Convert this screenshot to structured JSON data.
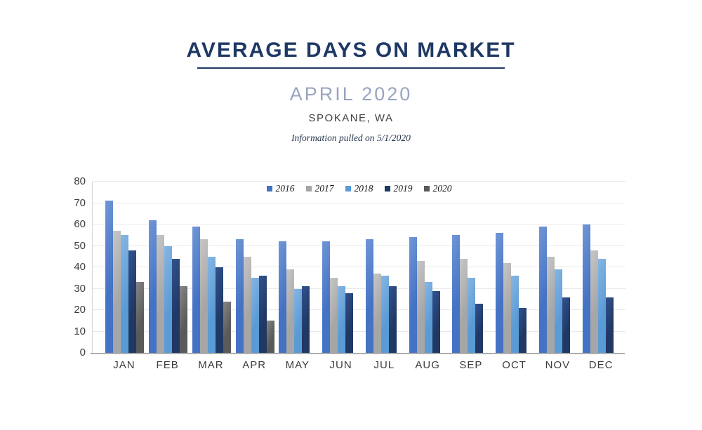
{
  "header": {
    "title": "AVERAGE DAYS ON MARKET",
    "subtitle": "APRIL 2020",
    "location": "SPOKANE, WA",
    "note": "Information pulled on 5/1/2020"
  },
  "palette": {
    "title_navy": "#1F3864",
    "subtitle_blue_gray": "#98A4C0",
    "location_gray": "#404040",
    "axis_text": "#3C3C3C",
    "gridline": "#E9E9E9",
    "axis_line": "#ADADAD"
  },
  "chart_data": {
    "type": "bar",
    "title": "Average Days on Market",
    "xlabel": "",
    "ylabel": "",
    "ylim": [
      0,
      80
    ],
    "ytick_step": 10,
    "grid": true,
    "legend_position": "top-center",
    "categories": [
      "JAN",
      "FEB",
      "MAR",
      "APR",
      "MAY",
      "JUN",
      "JUL",
      "AUG",
      "SEP",
      "OCT",
      "NOV",
      "DEC"
    ],
    "series": [
      {
        "name": "2016",
        "color": "#4472C4",
        "color_light": "#7096D6",
        "values": [
          71,
          62,
          59,
          53,
          52,
          52,
          53,
          54,
          55,
          56,
          59,
          60
        ]
      },
      {
        "name": "2017",
        "color": "#A6A6A6",
        "color_light": "#C6C6C6",
        "values": [
          57,
          55,
          53,
          45,
          39,
          35,
          37,
          43,
          44,
          42,
          45,
          48
        ]
      },
      {
        "name": "2018",
        "color": "#5B9BD5",
        "color_light": "#86B6E3",
        "values": [
          55,
          50,
          45,
          35,
          30,
          31,
          36,
          33,
          35,
          36,
          39,
          44
        ]
      },
      {
        "name": "2019",
        "color": "#1F3864",
        "color_light": "#32528E",
        "values": [
          48,
          44,
          40,
          36,
          31,
          28,
          31,
          29,
          23,
          21,
          26,
          26
        ]
      },
      {
        "name": "2020",
        "color": "#5A5A5A",
        "color_light": "#868686",
        "values": [
          33,
          31,
          24,
          15,
          null,
          null,
          null,
          null,
          null,
          null,
          null,
          null
        ]
      }
    ]
  }
}
